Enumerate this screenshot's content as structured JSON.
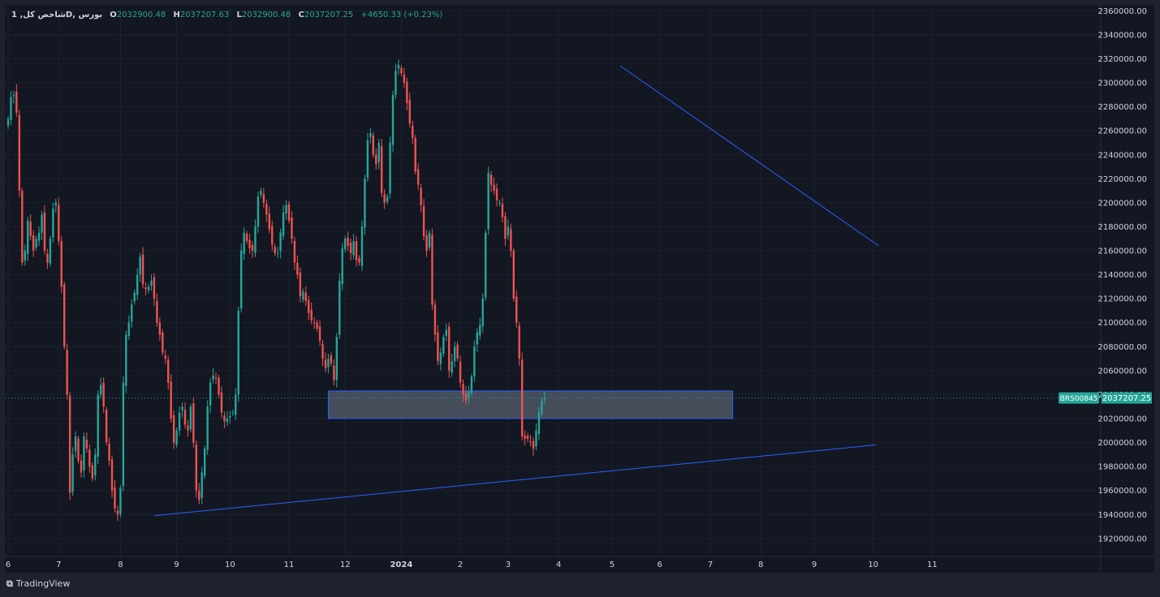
{
  "header": {
    "symbol": "شاخص کل, 1D, بورس",
    "open_label": "O",
    "open": "2032900.48",
    "high_label": "H",
    "high": "2037207.63",
    "low_label": "L",
    "low": "2032900.48",
    "close_label": "C",
    "close": "2037207.25",
    "change": "+4650.33 (+0.23%)"
  },
  "footer": {
    "brand": "TradingView"
  },
  "colors": {
    "up": "#26a69a",
    "down": "#ef5350",
    "trendline": "#2962ff",
    "zone_fill": "#4f5764",
    "zone_border": "#2962ff",
    "background": "#131722",
    "grid": "#1c2130",
    "price_label": "#26a69a"
  },
  "chart_data": {
    "type": "candlestick",
    "title": "",
    "xlabel": "",
    "ylabel": "",
    "ylim": [
      1905000,
      2365000
    ],
    "y_ticks": [
      1920000,
      1940000,
      1960000,
      1980000,
      2000000,
      2020000,
      2040000,
      2060000,
      2080000,
      2100000,
      2120000,
      2140000,
      2160000,
      2180000,
      2200000,
      2220000,
      2240000,
      2260000,
      2280000,
      2300000,
      2320000,
      2340000,
      2360000
    ],
    "y_tick_labels": [
      "1920000.00",
      "1940000.00",
      "1960000.00",
      "1980000.00",
      "2000000.00",
      "2020000.00",
      "2040000.00",
      "2060000.00",
      "2080000.00",
      "2100000.00",
      "2120000.00",
      "2140000.00",
      "2160000.00",
      "2180000.00",
      "2200000.00",
      "2220000.00",
      "2240000.00",
      "2260000.00",
      "2280000.00",
      "2300000.00",
      "2320000.00",
      "2340000.00",
      "2360000.00"
    ],
    "x_ticks": [
      {
        "label": "6",
        "bar": 0
      },
      {
        "label": "7",
        "bar": 18
      },
      {
        "label": "8",
        "bar": 40
      },
      {
        "label": "9",
        "bar": 60
      },
      {
        "label": "10",
        "bar": 79
      },
      {
        "label": "11",
        "bar": 100
      },
      {
        "label": "12",
        "bar": 120
      },
      {
        "label": "2024",
        "bar": 140
      },
      {
        "label": "2",
        "bar": 161
      },
      {
        "label": "3",
        "bar": 178
      },
      {
        "label": "4",
        "bar": 196
      },
      {
        "label": "5",
        "bar": 215
      },
      {
        "label": "6",
        "bar": 232
      },
      {
        "label": "7",
        "bar": 250
      },
      {
        "label": "8",
        "bar": 268
      },
      {
        "label": "9",
        "bar": 287
      },
      {
        "label": "10",
        "bar": 308
      },
      {
        "label": "11",
        "bar": 329
      }
    ],
    "closes": [
      2270000,
      2288000,
      2290000,
      2275000,
      2210000,
      2150000,
      2160000,
      2185000,
      2172000,
      2160000,
      2170000,
      2175000,
      2190000,
      2160000,
      2150000,
      2170000,
      2195000,
      2200000,
      2168000,
      2130000,
      2080000,
      2040000,
      1958000,
      1990000,
      2005000,
      1985000,
      1975000,
      2005000,
      1995000,
      1980000,
      1970000,
      1990000,
      2040000,
      2048000,
      2030000,
      2000000,
      1985000,
      1960000,
      1945000,
      1940000,
      1962000,
      2050000,
      2090000,
      2100000,
      2115000,
      2125000,
      2140000,
      2155000,
      2132000,
      2128000,
      2130000,
      2135000,
      2120000,
      2100000,
      2090000,
      2075000,
      2070000,
      2050000,
      2020000,
      2000000,
      2010000,
      2025000,
      2030000,
      2015000,
      2010000,
      2030000,
      2000000,
      1960000,
      1952000,
      1975000,
      1995000,
      2030000,
      2050000,
      2056000,
      2054000,
      2040000,
      2025000,
      2018000,
      2020000,
      2022000,
      2025000,
      2040000,
      2110000,
      2160000,
      2175000,
      2168000,
      2162000,
      2160000,
      2180000,
      2205000,
      2210000,
      2200000,
      2190000,
      2178000,
      2165000,
      2158000,
      2158000,
      2175000,
      2192000,
      2198000,
      2185000,
      2170000,
      2150000,
      2140000,
      2122000,
      2126000,
      2118000,
      2108000,
      2102000,
      2100000,
      2095000,
      2085000,
      2070000,
      2062000,
      2070000,
      2066000,
      2052000,
      2088000,
      2135000,
      2162000,
      2170000,
      2164000,
      2158000,
      2168000,
      2152000,
      2150000,
      2180000,
      2220000,
      2252000,
      2258000,
      2240000,
      2232000,
      2250000,
      2208000,
      2200000,
      2205000,
      2250000,
      2290000,
      2310000,
      2315000,
      2308000,
      2300000,
      2283000,
      2266000,
      2254000,
      2226000,
      2215000,
      2198000,
      2172000,
      2160000,
      2175000,
      2115000,
      2090000,
      2068000,
      2075000,
      2088000,
      2094000,
      2060000,
      2068000,
      2080000,
      2070000,
      2050000,
      2040000,
      2035000,
      2043000,
      2055000,
      2080000,
      2092000,
      2098000,
      2120000,
      2175000,
      2225000,
      2215000,
      2210000,
      2202000,
      2200000,
      2188000,
      2170000,
      2180000,
      2160000,
      2120000,
      2100000,
      2070000,
      2005000,
      2003000,
      2003000,
      2001000,
      1995000,
      2010000,
      2025000,
      2035000,
      2037207
    ],
    "trendlines": [
      {
        "name": "resistance",
        "from": {
          "bar": 218,
          "price": 2314000
        },
        "to": {
          "bar": 310,
          "price": 2164000
        }
      },
      {
        "name": "support",
        "from": {
          "bar": 52,
          "price": 1939000
        },
        "to": {
          "bar": 309,
          "price": 1998000
        }
      }
    ],
    "zone": {
      "from_bar": 114,
      "to_bar": 258,
      "top": 2043000,
      "bottom": 2020000
    },
    "last_price": {
      "symbol_tag": "BRS00845",
      "value": "2037207.25",
      "price": 2037207.25
    }
  }
}
